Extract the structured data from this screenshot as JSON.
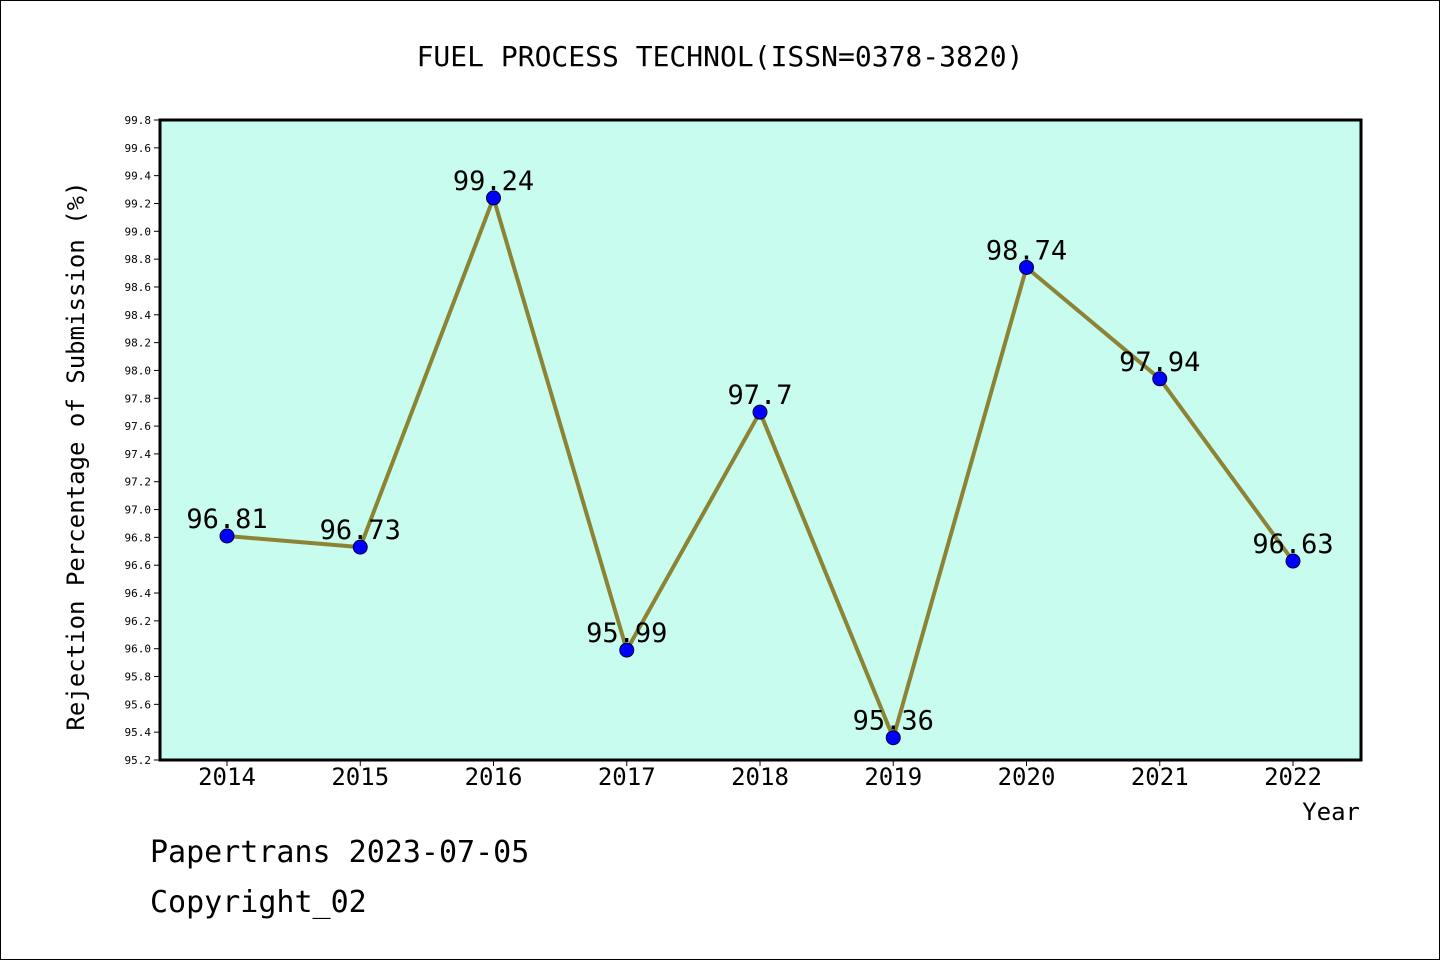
{
  "chart_data": {
    "type": "line",
    "title": "FUEL PROCESS TECHNOL(ISSN=0378-3820)",
    "xlabel": "Year",
    "ylabel": "Rejection Percentage of Submission (%)",
    "categories": [
      "2014",
      "2015",
      "2016",
      "2017",
      "2018",
      "2019",
      "2020",
      "2021",
      "2022"
    ],
    "values": [
      96.81,
      96.73,
      99.24,
      95.99,
      97.7,
      95.36,
      98.74,
      97.94,
      96.63
    ],
    "data_labels": [
      "96.81",
      "96.73",
      "99.24",
      "95.99",
      "97.7",
      "95.36",
      "98.74",
      "97.94",
      "96.63"
    ],
    "ylim": [
      95.2,
      99.8
    ],
    "yticks": [
      "95.2",
      "95.4",
      "95.6",
      "95.8",
      "96.0",
      "96.2",
      "96.4",
      "96.6",
      "96.8",
      "97.0",
      "97.2",
      "97.4",
      "97.6",
      "97.8",
      "98.0",
      "98.2",
      "98.4",
      "98.6",
      "98.8",
      "99.0",
      "99.2",
      "99.4",
      "99.6",
      "99.8"
    ],
    "grid": false,
    "legend": "none",
    "colors": {
      "plot_background": "#c8fcee",
      "line": "#8c8434",
      "marker": "#0000ff"
    }
  },
  "footer": {
    "line1": "Papertrans 2023-07-05",
    "line2": "Copyright_02"
  }
}
